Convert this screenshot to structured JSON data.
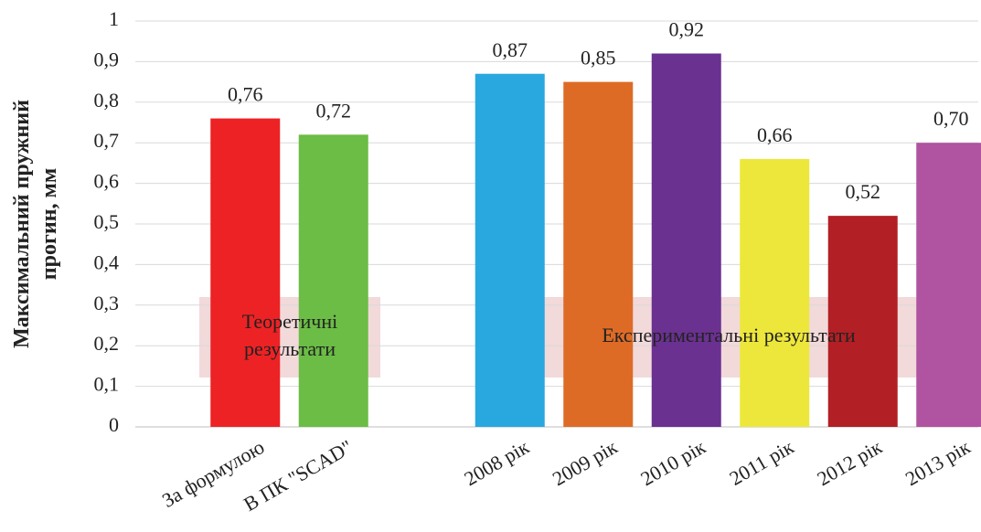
{
  "chart_data": {
    "type": "bar",
    "y_label": [
      "Максимальний пружний",
      "прогин, мм"
    ],
    "categories": [
      "За формулою",
      "В ПК \"SCAD\"",
      null,
      "2008 рік",
      "2009 рік",
      "2010 рік",
      "2011 рік",
      "2012 рік",
      "2013 рік"
    ],
    "values": [
      0.76,
      0.72,
      null,
      0.87,
      0.85,
      0.92,
      0.66,
      0.52,
      0.7
    ],
    "value_labels": [
      "0,76",
      "0,72",
      null,
      "0,87",
      "0,85",
      "0,92",
      "0,66",
      "0,52",
      "0,70"
    ],
    "colors": [
      "#ed2224",
      "#6bbd45",
      null,
      "#29a8e0",
      "#dd6b26",
      "#6a3191",
      "#ede73b",
      "#b21f24",
      "#b053a1"
    ],
    "ylim": [
      0,
      1
    ],
    "yticks": [
      0,
      {
        "value": 0.1,
        "label": "0,1"
      },
      {
        "value": 0.2,
        "label": "0,2"
      },
      {
        "value": 0.3,
        "label": "0,3"
      },
      {
        "value": 0.4,
        "label": "0,4"
      },
      {
        "value": 0.5,
        "label": "0,5"
      },
      {
        "value": 0.6,
        "label": "0,6"
      },
      {
        "value": 0.7,
        "label": "0,7"
      },
      {
        "value": 0.8,
        "label": "0,8"
      },
      {
        "value": 0.9,
        "label": "0,9"
      },
      1
    ],
    "grid": true,
    "annotations": [
      {
        "lines": [
          "Теоретичні",
          "результати"
        ]
      },
      {
        "lines": [
          "Експериментальні результати"
        ]
      }
    ]
  }
}
